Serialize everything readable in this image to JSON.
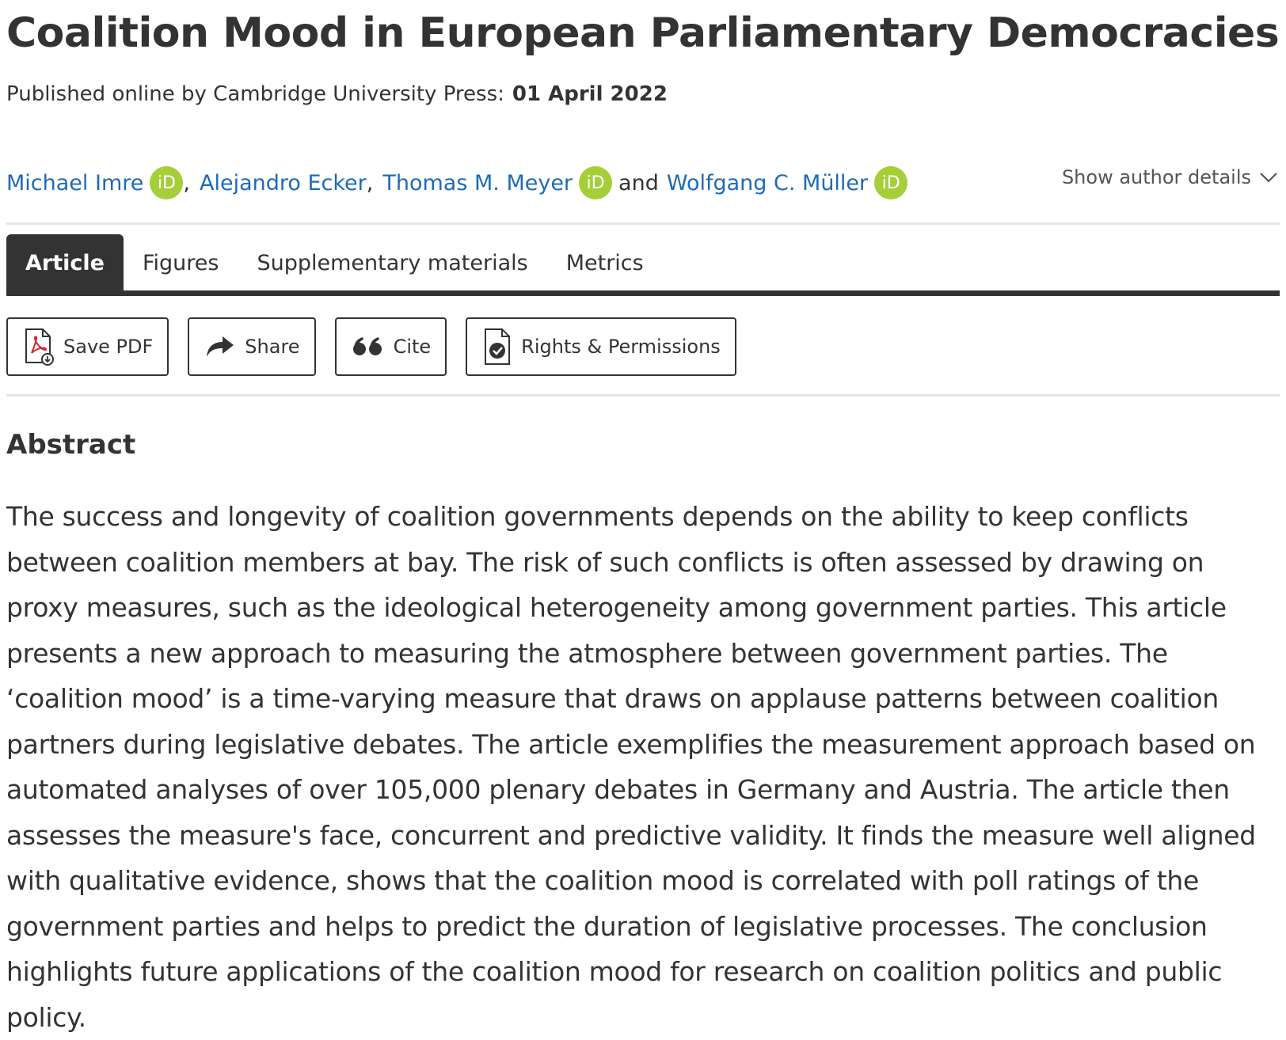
{
  "article": {
    "title": "Coalition Mood in European Parliamentary Democracies",
    "published_label": "Published online by Cambridge University Press:",
    "published_date": "01 April 2022"
  },
  "authors": {
    "list": [
      {
        "name": "Michael Imre",
        "orcid": "iD"
      },
      {
        "name": "Alejandro Ecker"
      },
      {
        "name": "Thomas M. Meyer",
        "orcid": "iD"
      },
      {
        "name": "Wolfgang C. Müller",
        "orcid": "iD"
      }
    ],
    "separator": ",",
    "conjunction": "and",
    "show_details_label": "Show author details"
  },
  "tabs": [
    {
      "label": "Article",
      "active": true
    },
    {
      "label": "Figures",
      "active": false
    },
    {
      "label": "Supplementary materials",
      "active": false
    },
    {
      "label": "Metrics",
      "active": false
    }
  ],
  "actions": {
    "save_pdf": "Save PDF",
    "share": "Share",
    "cite": "Cite",
    "rights": "Rights & Permissions"
  },
  "icons": {
    "save_pdf": "pdf-download-icon",
    "share": "share-arrow-icon",
    "cite": "quote-icon",
    "rights": "document-check-icon",
    "details": "chevron-down-icon"
  },
  "colors": {
    "link": "#1f6bb5",
    "orcid": "#a6ce39",
    "tab_active": "#333333",
    "pdf_red": "#d9232d"
  },
  "abstract": {
    "heading": "Abstract",
    "text": "The success and longevity of coalition governments depends on the ability to keep conflicts between coalition members at bay. The risk of such conflicts is often assessed by drawing on proxy measures, such as the ideological heterogeneity among government parties. This article presents a new approach to measuring the atmosphere between government parties. The ‘coalition mood’ is a time-varying measure that draws on applause patterns between coalition partners during legislative debates. The article exemplifies the measurement approach based on automated analyses of over 105,000 plenary debates in Germany and Austria. The article then assesses the measure's face, concurrent and predictive validity. It finds the measure well aligned with qualitative evidence, shows that the coalition mood is correlated with poll ratings of the government parties and helps to predict the duration of legislative processes. The conclusion highlights future applications of the coalition mood for research on coalition politics and public policy."
  }
}
